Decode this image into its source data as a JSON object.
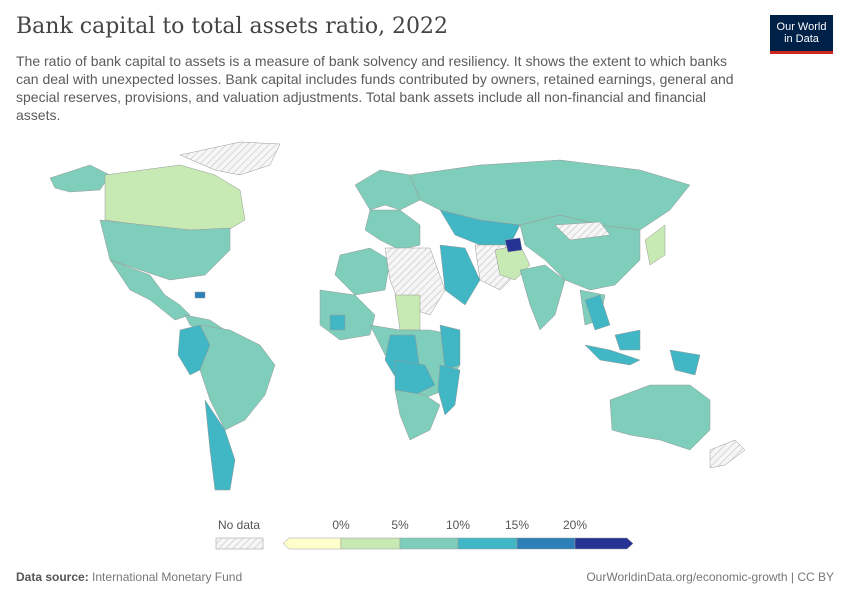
{
  "header": {
    "title": "Bank capital to total assets ratio, 2022",
    "subtitle": "The ratio of bank capital to assets is a measure of bank solvency and resiliency. It shows the extent to which banks can deal with unexpected losses. Bank capital includes funds contributed by owners, retained earnings, general and special reserves, provisions, and valuation adjustments. Total bank assets include all non-financial and financial assets."
  },
  "logo": {
    "text": "Our World in Data",
    "line1": "Our World",
    "line2": "in Data",
    "bg": "#002147",
    "accent": "#ce261e"
  },
  "legend": {
    "no_data_label": "No data",
    "ticks": [
      "0%",
      "5%",
      "10%",
      "15%",
      "20%"
    ],
    "bins": [
      {
        "range": "<0%",
        "color": "#ffffcc"
      },
      {
        "range": "0–5%",
        "color": "#c7e9b4"
      },
      {
        "range": "5–10%",
        "color": "#7fcdbb"
      },
      {
        "range": "10–15%",
        "color": "#41b6c4"
      },
      {
        "range": "15–20%",
        "color": "#2c7fb8"
      },
      {
        "range": ">20%",
        "color": "#253494"
      }
    ]
  },
  "footer": {
    "source_label": "Data source:",
    "source": "International Monetary Fund",
    "url": "OurWorldinData.org/economic-growth | CC BY"
  }
}
